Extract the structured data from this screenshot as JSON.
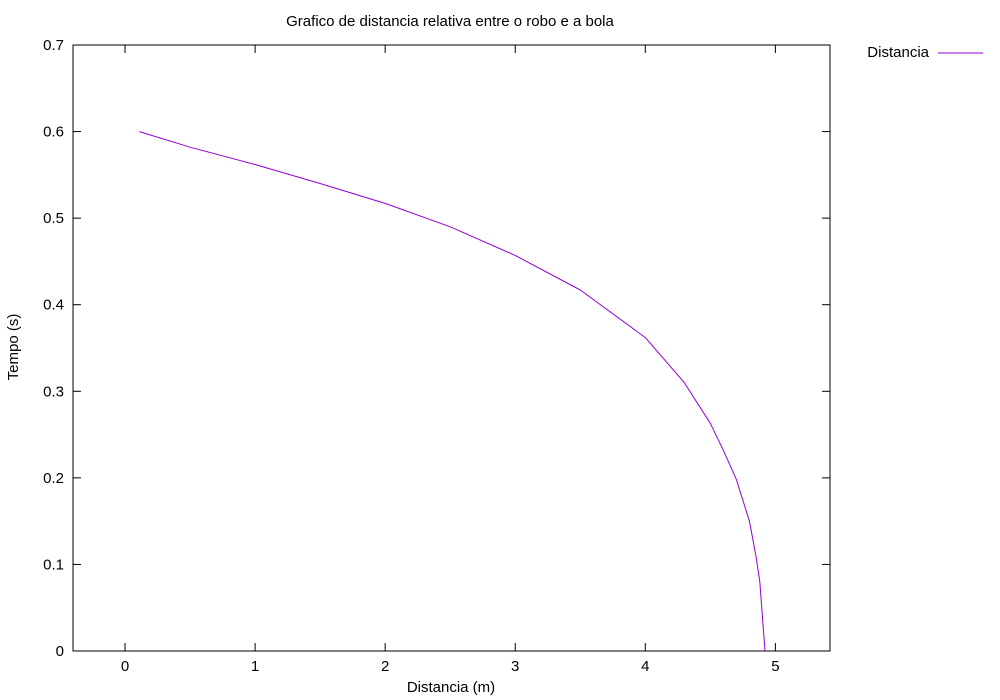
{
  "chart_data": {
    "type": "line",
    "title": "Grafico de distancia relativa entre o robo e a bola",
    "xlabel": "Distancia (m)",
    "ylabel": "Tempo (s)",
    "xlim": [
      -0.4,
      5.42
    ],
    "ylim": [
      0,
      0.7
    ],
    "xticks": [
      0,
      1,
      2,
      3,
      4,
      5
    ],
    "yticks": [
      0,
      0.1,
      0.2,
      0.3,
      0.4,
      0.5,
      0.6,
      0.7
    ],
    "xtick_labels": [
      "0",
      "1",
      "2",
      "3",
      "4",
      "5"
    ],
    "ytick_labels": [
      "0",
      "0.1",
      "0.2",
      "0.3",
      "0.4",
      "0.5",
      "0.6",
      "0.7"
    ],
    "grid": false,
    "legend_position": "outside-top-right",
    "series": [
      {
        "name": "Distancia",
        "color": "#9400d3",
        "x": [
          0.11,
          0.5,
          1.0,
          1.5,
          2.0,
          2.5,
          3.0,
          3.5,
          4.0,
          4.3,
          4.5,
          4.6,
          4.7,
          4.8,
          4.85,
          4.88,
          4.9,
          4.92
        ],
        "y": [
          0.6,
          0.582,
          0.562,
          0.54,
          0.517,
          0.49,
          0.457,
          0.417,
          0.362,
          0.31,
          0.263,
          0.232,
          0.198,
          0.15,
          0.11,
          0.08,
          0.04,
          0.0
        ]
      }
    ]
  }
}
